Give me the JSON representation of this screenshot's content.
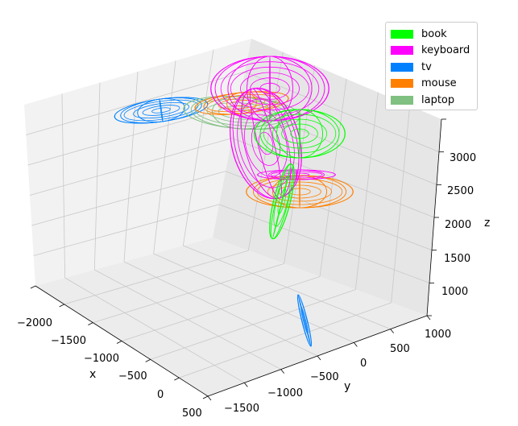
{
  "chart_data": {
    "type": "3d-wireframe",
    "xlabel": "x",
    "ylabel": "y",
    "zlabel": "z",
    "x_ticks": [
      "−2000",
      "−1500",
      "−1000",
      "−500",
      "0",
      "500"
    ],
    "y_ticks": [
      "−1500",
      "−1000",
      "−500",
      "0",
      "500",
      "1000"
    ],
    "z_ticks": [
      "1000",
      "1500",
      "2000",
      "2500",
      "3000"
    ],
    "grid": true,
    "legend_position": "top-right",
    "series": [
      {
        "name": "book",
        "color": "#00ff00"
      },
      {
        "name": "keyboard",
        "color": "#ff00ff"
      },
      {
        "name": "tv",
        "color": "#0080ff"
      },
      {
        "name": "mouse",
        "color": "#ff8000"
      },
      {
        "name": "laptop",
        "color": "#80c080"
      }
    ]
  }
}
